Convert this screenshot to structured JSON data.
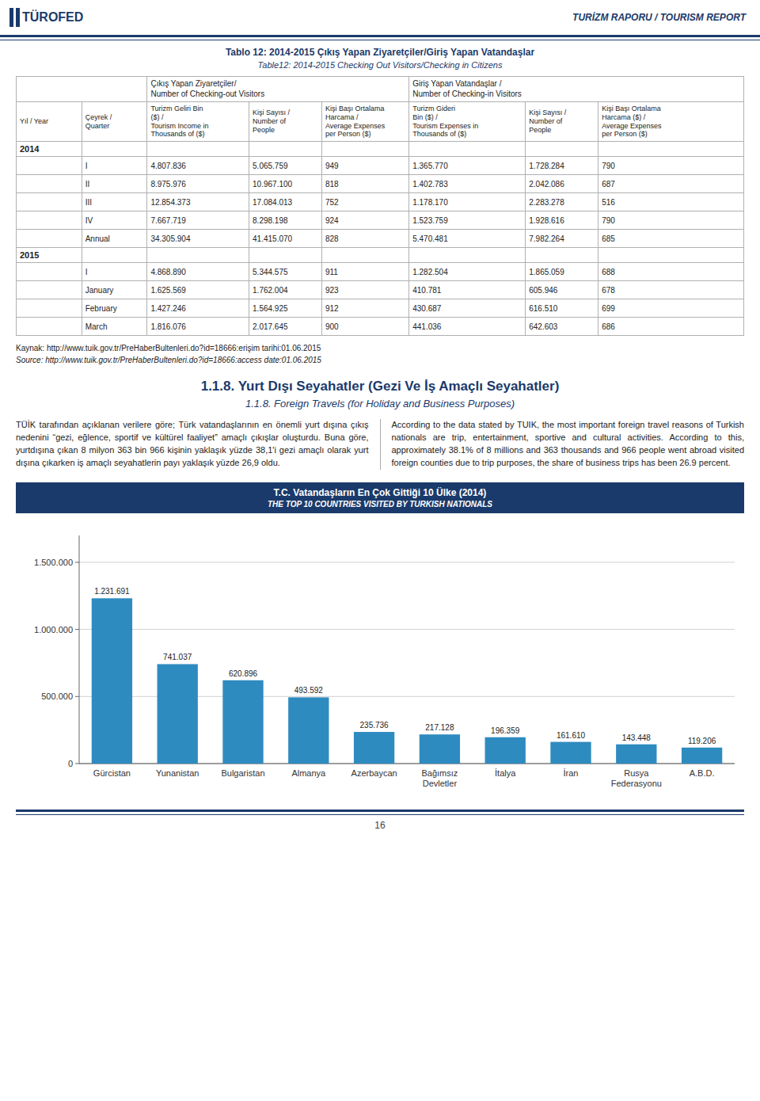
{
  "page": {
    "header_left": "TÜROFED",
    "header_right": "TURİZM RAPORU / TOURISM REPORT",
    "table_title_tr": "Tablo 12: 2014-2015 Çıkış Yapan Ziyaretçiler/Giriş Yapan  Vatandaşlar",
    "table_title_en": "Table12: 2014-2015 Checking Out Visitors/Checking in Citizens",
    "table": {
      "group_headers": [
        "Çıkış Yapan Ziyaretçiler/\nNumber of Checking-out Visitors",
        "Giriş Yapan Vatandaşlar /\nNumber of Checking-in Visitors"
      ],
      "columns": [
        "Yıl / Year",
        "Çeyrek /\nQuarter",
        "Turizm Geliri Bin\n($) /\nTourism Income in\nThousands of ($)",
        "Kişi Sayısı /\nNumber of\nPeople",
        "Kişi Başı Ortalama\nHarcama /\nAverage Expenses\nper Person ($)",
        "Turizm  Gideri\nBin ($) /\nTourism Expenses in\nThousands of ($)",
        "Kişi Sayısı /\nNumber of\nPeople",
        "Kişi Başı Ortalama\nHarcama ($) /\nAverage Expenses\nper Person ($)"
      ],
      "groups": [
        {
          "year": "2014",
          "rows": [
            [
              "I",
              "4.807.836",
              "5.065.759",
              "949",
              "1.365.770",
              "1.728.284",
              "790"
            ],
            [
              "II",
              "8.975.976",
              "10.967.100",
              "818",
              "1.402.783",
              "2.042.086",
              "687"
            ],
            [
              "III",
              "12.854.373",
              "17.084.013",
              "752",
              "1.178.170",
              "2.283.278",
              "516"
            ],
            [
              "IV",
              "7.667.719",
              "8.298.198",
              "924",
              "1.523.759",
              "1.928.616",
              "790"
            ],
            [
              "Annual",
              "34.305.904",
              "41.415.070",
              "828",
              "5.470.481",
              "7.982.264",
              "685"
            ]
          ]
        },
        {
          "year": "2015",
          "rows": [
            [
              "I",
              "4.868.890",
              "5.344.575",
              "911",
              "1.282.504",
              "1.865.059",
              "688"
            ],
            [
              "January",
              "1.625.569",
              "1.762.004",
              "923",
              "410.781",
              "605.946",
              "678"
            ],
            [
              "February",
              "1.427.246",
              "1.564.925",
              "912",
              "430.687",
              "616.510",
              "699"
            ],
            [
              "March",
              "1.816.076",
              "2.017.645",
              "900",
              "441.036",
              "642.603",
              "686"
            ]
          ]
        }
      ]
    },
    "source_line1": "Kaynak: http://www.tuik.gov.tr/PreHaberBultenleri.do?id=18666:erişim tarihi:01.06.2015",
    "source_line2": "Source: http://www.tuik.gov.tr/PreHaberBultenleri.do?id=18666:access date:01.06.2015",
    "section_title_tr": "1.1.8. Yurt Dışı Seyahatler (Gezi Ve İş Amaçlı Seyahatler)",
    "section_title_en": "1.1.8. Foreign Travels (for Holiday and Business Purposes)",
    "left_paragraph": "TÜİK tarafından açıklanan verilere göre; Türk vatandaşlarının en önemli yurt dışına çıkış nedenini “gezi, eğlence, sportif ve kültürel faaliyet” amaçlı çıkışlar oluşturdu. Buna göre, yurtdışına çıkan 8 milyon 363 bin 966 kişinin yaklaşık yüzde 38,1'i gezi amaçlı olarak yurt dışına çıkarken iş amaçlı seyahatlerin payı yaklaşık yüzde 26,9 oldu.",
    "right_paragraph": "According to the data stated by TUIK, the most important foreign travel reasons of Turkish nationals are trip, entertainment, sportive and cultural activities. According to this, approximately 38.1% of 8 millions and 363 thousands and 966 people went abroad visited foreign counties due to trip purposes, the share of business trips has been 26.9 percent.",
    "page_num": "16"
  },
  "chart_data": {
    "type": "bar",
    "title": "T.C. Vatandaşların En Çok Gittiği 10 Ülke (2014)",
    "subtitle": "THE TOP 10 COUNTRIES VISITED BY TURKISH NATIONALS",
    "categories": [
      "Gürcistan",
      "Yunanistan",
      "Bulgaristan",
      "Almanya",
      "Azerbaycan",
      "Bağımsız\nDevletler",
      "İtalya",
      "İran",
      "Rusya\nFederasyonu",
      "A.B.D."
    ],
    "values": [
      1231691,
      741037,
      620896,
      493592,
      235736,
      217128,
      196359,
      161610,
      143448,
      119206
    ],
    "value_labels": [
      "1.231.691",
      "741.037",
      "620.896",
      "493.592",
      "235.736",
      "217.128",
      "196.359",
      "161.610",
      "143.448",
      "119.206"
    ],
    "data_labels": true,
    "color": "#2e8bc0",
    "ylim": [
      0,
      1700000
    ],
    "yticks": [
      0,
      {
        "value": 500000,
        "label": "500.000"
      },
      {
        "value": 1000000,
        "label": "1.000.000"
      },
      {
        "value": 1500000,
        "label": "1.500.000"
      }
    ],
    "grid": true
  }
}
